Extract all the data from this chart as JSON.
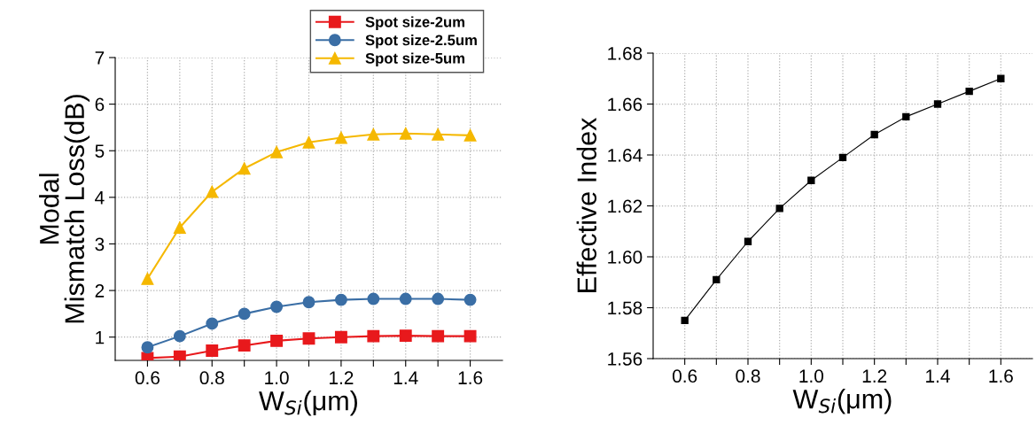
{
  "chart_data": [
    {
      "type": "line",
      "xlabel": "W$_{Si}$(μm)",
      "ylabel": "Modal\nMismatch Loss(dB)",
      "x": [
        0.6,
        0.7,
        0.8,
        0.9,
        1.0,
        1.1,
        1.2,
        1.3,
        1.4,
        1.5,
        1.6
      ],
      "series": [
        {
          "name": "Spot size-2um",
          "color": "#e8191c",
          "marker": "square",
          "values": [
            0.55,
            0.58,
            0.71,
            0.82,
            0.92,
            0.97,
            1.0,
            1.02,
            1.03,
            1.02,
            1.02
          ]
        },
        {
          "name": "Spot size-2.5um",
          "color": "#3a6ea5",
          "marker": "circle",
          "values": [
            0.78,
            1.02,
            1.29,
            1.5,
            1.65,
            1.75,
            1.8,
            1.82,
            1.82,
            1.82,
            1.8
          ]
        },
        {
          "name": "Spot size-5um",
          "color": "#f5b800",
          "marker": "triangle",
          "values": [
            2.25,
            3.35,
            4.12,
            4.62,
            4.97,
            5.18,
            5.28,
            5.35,
            5.37,
            5.35,
            5.33
          ]
        }
      ],
      "xlim": [
        0.5,
        1.7
      ],
      "ylim": [
        0.5,
        7
      ],
      "xticks": [
        {
          "value": 0.6,
          "label": "0.6"
        },
        {
          "value": 0.7,
          "label": null
        },
        {
          "value": 0.8,
          "label": "0.8"
        },
        {
          "value": 0.9,
          "label": null
        },
        {
          "value": 1.0,
          "label": "1.0"
        },
        {
          "value": 1.1,
          "label": null
        },
        {
          "value": 1.2,
          "label": "1.2"
        },
        {
          "value": 1.3,
          "label": null
        },
        {
          "value": 1.4,
          "label": "1.4"
        },
        {
          "value": 1.5,
          "label": null
        },
        {
          "value": 1.6,
          "label": "1.6"
        }
      ],
      "yticks": [
        1,
        2,
        3,
        4,
        5,
        6,
        7
      ],
      "grid": true,
      "legend": "top right",
      "line_style": "solid"
    },
    {
      "type": "line",
      "xlabel": "W$_{Si}$(μm)",
      "ylabel": "Effective Index",
      "x": [
        0.6,
        0.7,
        0.8,
        0.9,
        1.0,
        1.1,
        1.2,
        1.3,
        1.4,
        1.5,
        1.6
      ],
      "series": [
        {
          "color": "#000000",
          "marker": "square",
          "values": [
            1.575,
            1.591,
            1.606,
            1.619,
            1.63,
            1.639,
            1.648,
            1.655,
            1.66,
            1.665,
            1.67
          ]
        }
      ],
      "xlim": [
        0.5,
        1.7
      ],
      "ylim": [
        1.56,
        1.68
      ],
      "xticks": [
        {
          "value": 0.6,
          "label": "0.6"
        },
        {
          "value": 0.7,
          "label": null
        },
        {
          "value": 0.8,
          "label": "0.8"
        },
        {
          "value": 0.9,
          "label": null
        },
        {
          "value": 1.0,
          "label": "1.0"
        },
        {
          "value": 1.1,
          "label": null
        },
        {
          "value": 1.2,
          "label": "1.2"
        },
        {
          "value": 1.3,
          "label": null
        },
        {
          "value": 1.4,
          "label": "1.4"
        },
        {
          "value": 1.5,
          "label": null
        },
        {
          "value": 1.6,
          "label": "1.6"
        }
      ],
      "yticks": [
        {
          "value": 1.56,
          "label": "1.56"
        },
        {
          "value": 1.58,
          "label": "1.58"
        },
        {
          "value": 1.6,
          "label": "1.60"
        },
        {
          "value": 1.62,
          "label": "1.62"
        },
        {
          "value": 1.64,
          "label": "1.64"
        },
        {
          "value": 1.66,
          "label": "1.66"
        },
        {
          "value": 1.68,
          "label": "1.68"
        }
      ],
      "grid": true,
      "line_style": "solid"
    }
  ]
}
